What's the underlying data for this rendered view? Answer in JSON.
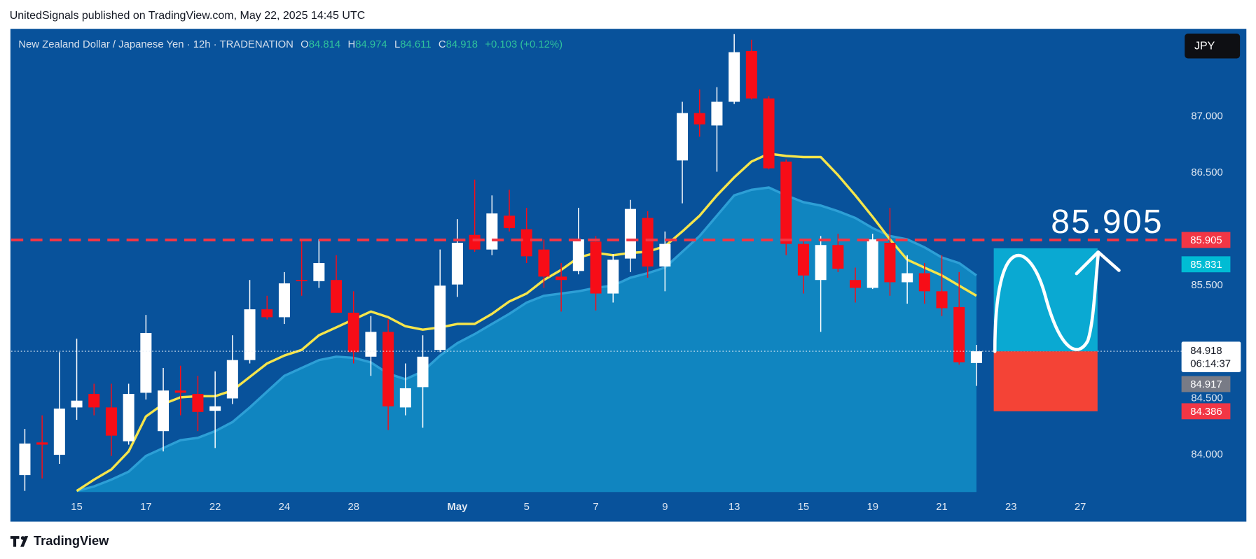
{
  "header": "UnitedSignals published on TradingView.com, May 22, 2025 14:45 UTC",
  "brand": "TradingView",
  "chart_data": {
    "type": "candlestick",
    "symbol": "New Zealand Dollar / Japanese Yen · 12h · TRADENATION",
    "legend_fields": [
      "O",
      "H",
      "L",
      "C"
    ],
    "change": "+0.103 (+0.12%)",
    "currency": "JPY",
    "categories": [
      null,
      null,
      null,
      "15",
      null,
      null,
      null,
      "17",
      null,
      null,
      null,
      "22",
      null,
      null,
      null,
      "24",
      null,
      null,
      null,
      "28",
      null,
      null,
      null,
      null,
      null,
      "May",
      null,
      null,
      null,
      "5",
      null,
      null,
      null,
      "7",
      null,
      null,
      null,
      "9",
      null,
      null,
      null,
      "13",
      null,
      null,
      null,
      "15",
      null,
      null,
      null,
      "19",
      null,
      null,
      null,
      "21",
      null,
      null,
      null,
      "23",
      null,
      null,
      null,
      "27"
    ],
    "open": [
      83.82,
      84.11,
      84.0,
      84.42,
      84.54,
      84.42,
      84.12,
      84.55,
      84.21,
      84.57,
      84.54,
      84.39,
      84.5,
      84.84,
      85.29,
      85.22,
      85.55,
      85.54,
      85.55,
      85.26,
      84.87,
      85.09,
      84.42,
      84.6,
      84.93,
      85.51,
      85.95,
      85.82,
      86.12,
      86.0,
      85.82,
      85.58,
      85.63,
      85.89,
      85.43,
      85.74,
      86.1,
      85.67,
      86.61,
      87.03,
      86.92,
      87.13,
      87.58,
      87.16,
      86.6,
      85.87,
      85.55,
      85.86,
      85.55,
      85.48,
      85.88,
      85.53,
      85.61,
      85.45,
      85.31,
      84.814,
      null,
      null,
      null,
      null,
      null,
      null
    ],
    "high": [
      84.23,
      84.35,
      84.91,
      85.03,
      84.63,
      84.63,
      84.63,
      85.24,
      84.77,
      84.79,
      84.7,
      84.74,
      85.06,
      85.55,
      85.41,
      85.62,
      85.91,
      85.91,
      85.77,
      85.45,
      85.23,
      85.2,
      84.81,
      85.06,
      85.82,
      86.09,
      86.44,
      86.3,
      86.35,
      86.19,
      85.91,
      85.7,
      86.19,
      85.94,
      85.78,
      86.26,
      86.16,
      85.98,
      87.13,
      87.24,
      87.26,
      87.73,
      87.68,
      87.18,
      86.62,
      85.91,
      85.94,
      85.96,
      85.66,
      85.96,
      86.19,
      85.77,
      85.7,
      85.77,
      85.62,
      84.974,
      null,
      null,
      null,
      null,
      null,
      null
    ],
    "low": [
      83.68,
      83.79,
      83.92,
      84.31,
      84.35,
      83.99,
      84.09,
      84.49,
      84.03,
      84.35,
      84.21,
      84.06,
      84.45,
      84.81,
      85.2,
      85.16,
      85.41,
      85.48,
      85.26,
      84.81,
      84.7,
      84.22,
      84.35,
      84.24,
      84.91,
      85.4,
      85.8,
      85.77,
      85.98,
      85.7,
      85.48,
      85.27,
      85.6,
      85.28,
      85.35,
      85.62,
      85.57,
      85.45,
      86.23,
      86.82,
      86.51,
      87.11,
      87.15,
      86.53,
      85.77,
      85.43,
      85.09,
      85.62,
      85.35,
      85.47,
      85.41,
      85.34,
      85.34,
      85.23,
      84.8,
      84.611,
      null,
      null,
      null,
      null,
      null,
      null
    ],
    "close": [
      84.1,
      84.09,
      84.41,
      84.48,
      84.42,
      84.17,
      84.54,
      85.08,
      84.57,
      84.55,
      84.38,
      84.43,
      84.84,
      85.29,
      85.22,
      85.52,
      85.54,
      85.7,
      85.26,
      84.91,
      85.09,
      84.43,
      84.59,
      84.87,
      85.5,
      85.88,
      85.82,
      86.14,
      86.01,
      85.76,
      85.58,
      85.55,
      85.91,
      85.43,
      85.73,
      86.18,
      85.67,
      85.87,
      87.03,
      86.93,
      87.13,
      87.57,
      87.16,
      86.54,
      85.87,
      85.59,
      85.86,
      85.65,
      85.48,
      85.91,
      85.53,
      85.61,
      85.45,
      85.3,
      84.82,
      84.918,
      null,
      null,
      null,
      null,
      null,
      null
    ],
    "up_color": "#ffffff",
    "down_color": "#f70d17",
    "series": [
      {
        "color": "#1085c0",
        "style": "area",
        "values": [
          null,
          null,
          null,
          83.68,
          83.72,
          83.78,
          83.85,
          83.99,
          84.06,
          84.13,
          84.15,
          84.21,
          84.29,
          84.42,
          84.56,
          84.7,
          84.77,
          84.84,
          84.87,
          84.86,
          84.82,
          84.72,
          84.67,
          84.74,
          84.88,
          84.99,
          85.07,
          85.16,
          85.25,
          85.35,
          85.41,
          85.43,
          85.45,
          85.48,
          85.5,
          85.57,
          85.61,
          85.66,
          85.8,
          85.94,
          86.12,
          86.3,
          86.35,
          86.37,
          86.3,
          86.24,
          86.21,
          86.16,
          86.1,
          86.01,
          85.94,
          85.91,
          85.84,
          85.75,
          85.7,
          85.59,
          null,
          null,
          null,
          null,
          null,
          null
        ]
      },
      {
        "color": "#f5e54b",
        "style": "line",
        "values": [
          null,
          null,
          null,
          83.68,
          83.78,
          83.87,
          84.03,
          84.34,
          84.45,
          84.51,
          84.52,
          84.52,
          84.57,
          84.69,
          84.81,
          84.88,
          84.93,
          85.06,
          85.13,
          85.2,
          85.27,
          85.22,
          85.14,
          85.11,
          85.13,
          85.16,
          85.16,
          85.25,
          85.36,
          85.43,
          85.55,
          85.64,
          85.75,
          85.79,
          85.77,
          85.79,
          85.8,
          85.85,
          85.98,
          86.12,
          86.3,
          86.46,
          86.6,
          86.67,
          86.65,
          86.64,
          86.64,
          86.48,
          86.3,
          86.11,
          85.91,
          85.73,
          85.66,
          85.59,
          85.5,
          85.41,
          null,
          null,
          null,
          null,
          null,
          null
        ]
      }
    ],
    "ylim": [
      83.67,
      87.77
    ],
    "yticks": [
      {
        "value": 84,
        "label": "84.000"
      },
      {
        "value": 84.5,
        "label": "84.500"
      },
      {
        "value": 85.5,
        "label": "85.500"
      },
      {
        "value": 86.5,
        "label": "86.500"
      },
      {
        "value": 87,
        "label": "87.000"
      }
    ],
    "grid": false,
    "target": 85.905,
    "target_color": "#f23645",
    "countdown": "06:14:37",
    "position": {
      "take_profit": 85.831,
      "entry": 84.917,
      "stop_loss": 84.386,
      "profit_color": "#0aa9d2",
      "loss_color": "#f44336",
      "entry_color": "#787b86",
      "tp_label_color": "#00bcd4",
      "sl_label_color": "#f23645"
    }
  }
}
